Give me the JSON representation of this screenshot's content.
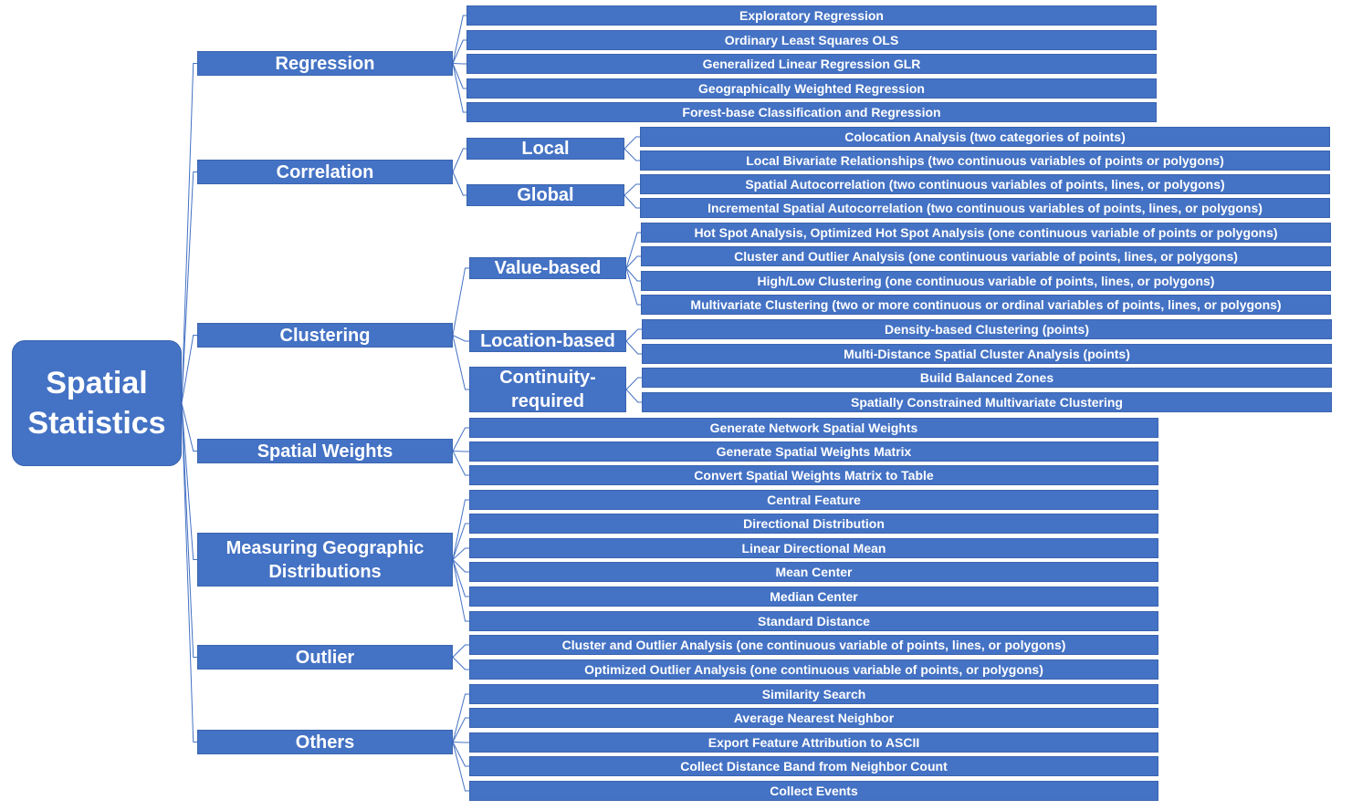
{
  "root": {
    "label": "Spatial Statistics"
  },
  "categories": [
    {
      "label": "Regression",
      "children": [
        "Exploratory Regression",
        "Ordinary Least Squares OLS",
        "Generalized Linear Regression GLR",
        "Geographically Weighted Regression",
        "Forest-base Classification and Regression"
      ]
    },
    {
      "label": "Correlation",
      "subgroups": [
        {
          "label": "Local",
          "children": [
            "Colocation Analysis (two categories of points)",
            "Local Bivariate Relationships (two continuous variables of points or polygons)"
          ]
        },
        {
          "label": "Global",
          "children": [
            "Spatial Autocorrelation (two continuous variables of points, lines, or polygons)",
            "Incremental Spatial Autocorrelation (two continuous variables of points, lines, or polygons)"
          ]
        }
      ]
    },
    {
      "label": "Clustering",
      "subgroups": [
        {
          "label": "Value-based",
          "children": [
            "Hot Spot Analysis, Optimized Hot Spot Analysis (one continuous variable of points or polygons)",
            "Cluster and Outlier Analysis (one continuous variable of points, lines, or polygons)",
            "High/Low Clustering (one continuous variable of points, lines, or polygons)",
            "Multivariate Clustering (two or more continuous or ordinal variables of points, lines, or polygons)"
          ]
        },
        {
          "label": "Location-based",
          "children": [
            "Density-based Clustering (points)",
            "Multi-Distance Spatial Cluster Analysis (points)"
          ]
        },
        {
          "label": "Continuity-required",
          "children": [
            "Build Balanced Zones",
            "Spatially Constrained Multivariate Clustering"
          ]
        }
      ]
    },
    {
      "label": "Spatial Weights",
      "children": [
        "Generate Network Spatial Weights",
        "Generate Spatial Weights Matrix",
        "Convert Spatial Weights Matrix to Table"
      ]
    },
    {
      "label": "Measuring Geographic Distributions",
      "children": [
        "Central Feature",
        "Directional Distribution",
        "Linear Directional Mean",
        "Mean Center",
        "Median Center",
        "Standard Distance"
      ]
    },
    {
      "label": "Outlier",
      "children": [
        "Cluster and Outlier Analysis (one continuous variable of points, lines, or polygons)",
        "Optimized Outlier Analysis (one continuous variable of points, or polygons)"
      ]
    },
    {
      "label": "Others",
      "children": [
        "Similarity Search",
        "Average Nearest Neighbor",
        "Export Feature Attribution to ASCII",
        "Collect Distance Band from Neighbor Count",
        "Collect Events"
      ]
    }
  ],
  "colors": {
    "node_fill": "#4472c4",
    "node_text": "#ffffff",
    "connector": "#4472c4"
  }
}
